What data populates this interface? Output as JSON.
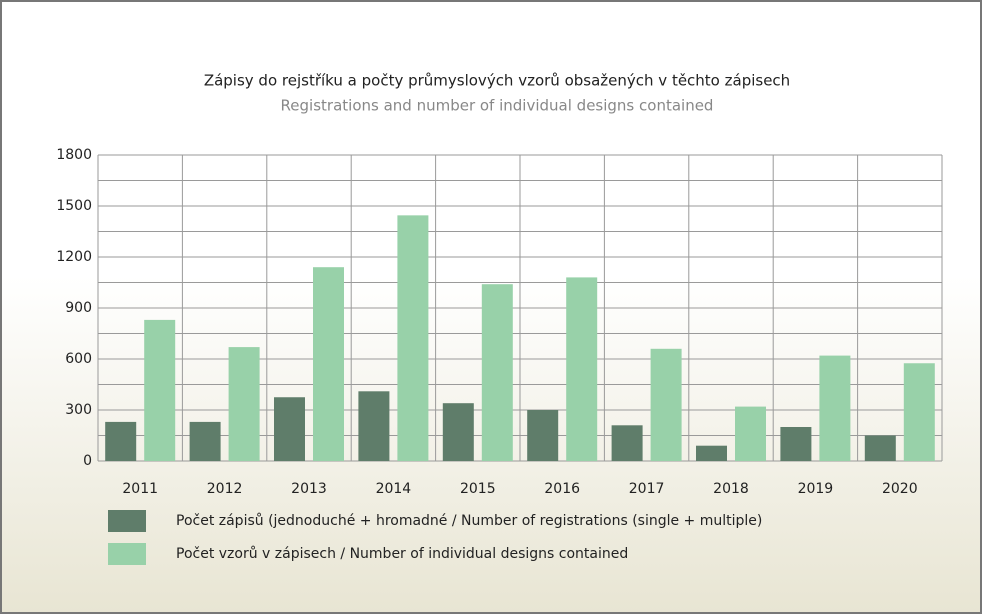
{
  "chart_data": {
    "type": "bar",
    "title": "Zápisy do rejstříku a počty průmyslových vzorů obsažených v těchto zápisech",
    "subtitle": "Registrations and number of individual designs contained",
    "categories": [
      "2011",
      "2012",
      "2013",
      "2014",
      "2015",
      "2016",
      "2017",
      "2018",
      "2019",
      "2020"
    ],
    "series": [
      {
        "name": "Počet zápisů (jednoduché + hromadné / Number of registrations (single + multiple)",
        "color": "#5f7d6a",
        "values": [
          230,
          230,
          375,
          410,
          340,
          300,
          210,
          90,
          200,
          150
        ]
      },
      {
        "name": "Počet vzorů v zápisech / Number of individual designs contained",
        "color": "#98d1a9",
        "values": [
          830,
          670,
          1140,
          1445,
          1040,
          1080,
          660,
          320,
          620,
          575
        ]
      }
    ],
    "ylim": [
      0,
      1800
    ],
    "yticks": [
      0,
      300,
      600,
      900,
      1200,
      1500,
      1800
    ],
    "minor_yticks": [
      150,
      450,
      750,
      1050,
      1350,
      1650
    ],
    "grid": true
  }
}
